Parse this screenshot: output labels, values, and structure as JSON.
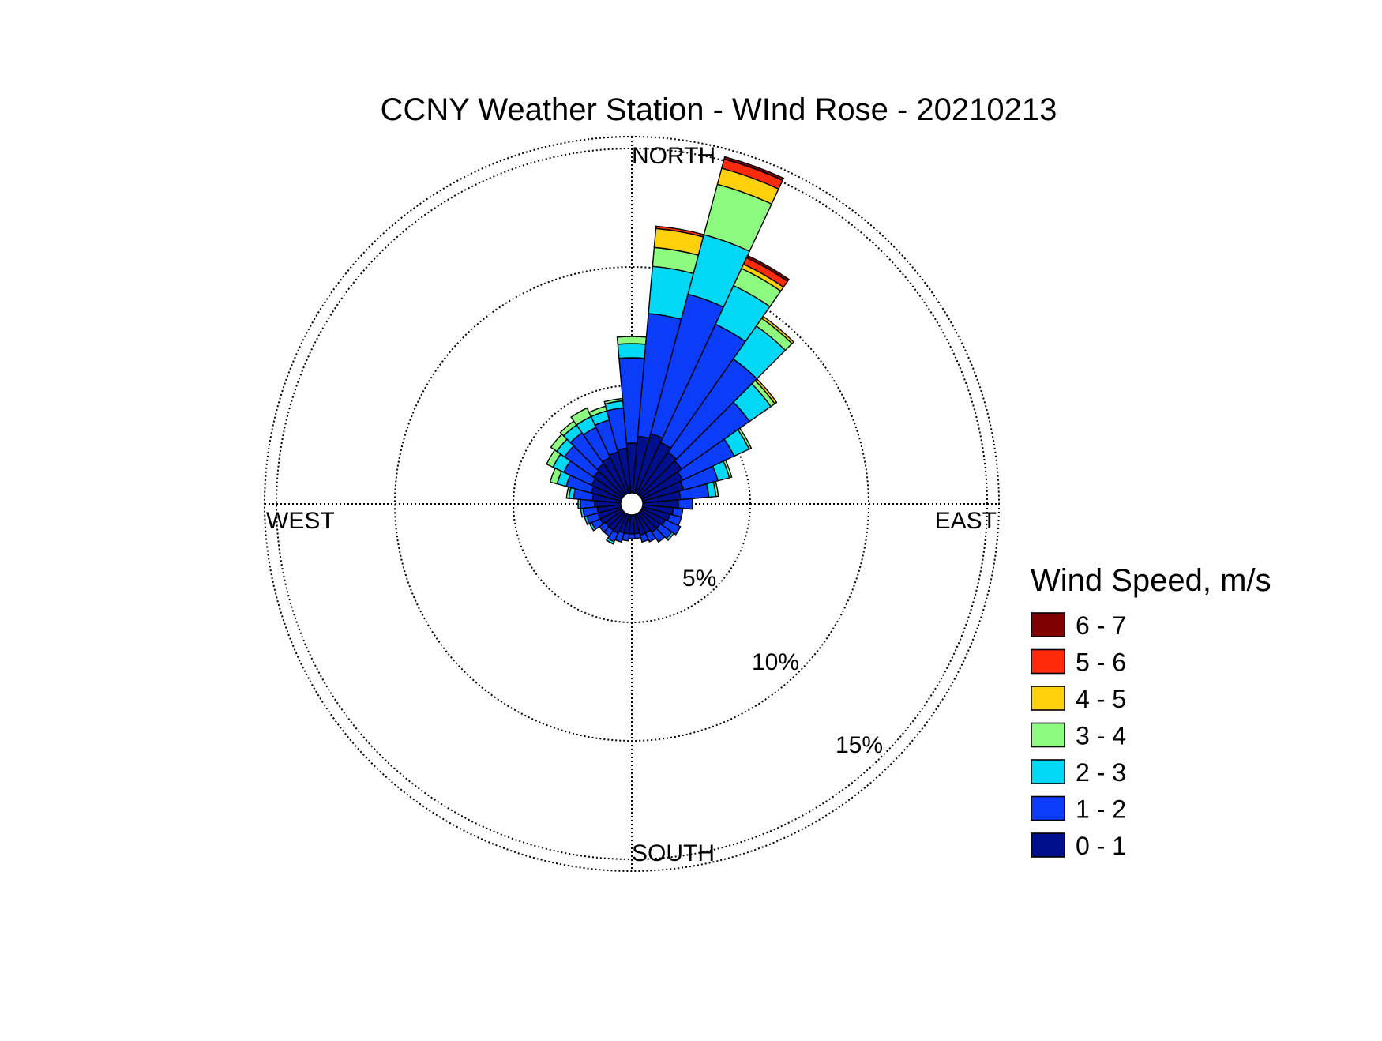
{
  "chart_data": {
    "type": "wind-rose",
    "title": "CCNY Weather Station - WInd Rose - 20210213",
    "directions": {
      "north": "NORTH",
      "east": "EAST",
      "south": "SOUTH",
      "west": "WEST"
    },
    "ring_labels": [
      "5%",
      "10%",
      "15%"
    ],
    "ring_values": [
      5,
      10,
      15
    ],
    "r_max": 15.5,
    "legend_title": "Wind Speed, m/s",
    "bins": [
      {
        "label": "0 - 1",
        "color": "#000f8c"
      },
      {
        "label": "1 - 2",
        "color": "#0a3cfa"
      },
      {
        "label": "2 - 3",
        "color": "#00d8f5"
      },
      {
        "label": "3 - 4",
        "color": "#8dfa80"
      },
      {
        "label": "4 - 5",
        "color": "#fcd00a"
      },
      {
        "label": "5 - 6",
        "color": "#ff2a0a"
      },
      {
        "label": "6 - 7",
        "color": "#7f0000"
      }
    ],
    "sector_width_deg": 10,
    "sectors": [
      {
        "dir": 0,
        "values": [
          2.1,
          3.6,
          0.6,
          0.3,
          0.0,
          0.0,
          0.0
        ]
      },
      {
        "dir": 10,
        "values": [
          2.4,
          5.2,
          2.0,
          0.8,
          0.8,
          0.1,
          0.0
        ]
      },
      {
        "dir": 20,
        "values": [
          2.6,
          6.1,
          2.6,
          2.2,
          0.7,
          0.4,
          0.1
        ]
      },
      {
        "dir": 30,
        "values": [
          2.4,
          5.5,
          1.8,
          0.8,
          0.2,
          0.3,
          0.1
        ]
      },
      {
        "dir": 40,
        "values": [
          2.2,
          4.8,
          1.7,
          0.4,
          0.1,
          0.0,
          0.0
        ]
      },
      {
        "dir": 50,
        "values": [
          2.1,
          3.5,
          1.1,
          0.2,
          0.1,
          0.0,
          0.0
        ]
      },
      {
        "dir": 60,
        "values": [
          1.9,
          2.4,
          0.7,
          0.1,
          0.0,
          0.0,
          0.0
        ]
      },
      {
        "dir": 70,
        "values": [
          1.8,
          1.5,
          0.5,
          0.1,
          0.0,
          0.0,
          0.0
        ]
      },
      {
        "dir": 80,
        "values": [
          1.6,
          1.2,
          0.3,
          0.1,
          0.0,
          0.0,
          0.0
        ]
      },
      {
        "dir": 90,
        "values": [
          1.5,
          0.6,
          0.0,
          0.0,
          0.0,
          0.0,
          0.0
        ]
      },
      {
        "dir": 100,
        "values": [
          1.3,
          0.4,
          0.0,
          0.0,
          0.0,
          0.0,
          0.0
        ]
      },
      {
        "dir": 110,
        "values": [
          1.2,
          0.5,
          0.0,
          0.0,
          0.0,
          0.0,
          0.0
        ]
      },
      {
        "dir": 120,
        "values": [
          1.1,
          0.7,
          0.0,
          0.0,
          0.0,
          0.0,
          0.0
        ]
      },
      {
        "dir": 130,
        "values": [
          1.0,
          0.6,
          0.1,
          0.0,
          0.0,
          0.0,
          0.0
        ]
      },
      {
        "dir": 140,
        "values": [
          1.0,
          0.5,
          0.0,
          0.0,
          0.0,
          0.0,
          0.0
        ]
      },
      {
        "dir": 150,
        "values": [
          0.9,
          0.4,
          0.0,
          0.0,
          0.0,
          0.0,
          0.0
        ]
      },
      {
        "dir": 160,
        "values": [
          0.9,
          0.3,
          0.0,
          0.0,
          0.0,
          0.0,
          0.0
        ]
      },
      {
        "dir": 170,
        "values": [
          0.8,
          0.2,
          0.0,
          0.0,
          0.0,
          0.0,
          0.0
        ]
      },
      {
        "dir": 180,
        "values": [
          0.8,
          0.2,
          0.0,
          0.0,
          0.0,
          0.0,
          0.0
        ]
      },
      {
        "dir": 190,
        "values": [
          0.8,
          0.3,
          0.0,
          0.0,
          0.0,
          0.0,
          0.0
        ]
      },
      {
        "dir": 200,
        "values": [
          0.8,
          0.4,
          0.0,
          0.0,
          0.0,
          0.0,
          0.0
        ]
      },
      {
        "dir": 210,
        "values": [
          0.9,
          0.4,
          0.1,
          0.0,
          0.0,
          0.0,
          0.0
        ]
      },
      {
        "dir": 220,
        "values": [
          0.9,
          0.3,
          0.0,
          0.0,
          0.0,
          0.0,
          0.0
        ]
      },
      {
        "dir": 230,
        "values": [
          0.9,
          0.3,
          0.0,
          0.0,
          0.0,
          0.0,
          0.0
        ]
      },
      {
        "dir": 240,
        "values": [
          1.0,
          0.4,
          0.1,
          0.0,
          0.0,
          0.0,
          0.0
        ]
      },
      {
        "dir": 250,
        "values": [
          1.0,
          0.5,
          0.1,
          0.0,
          0.0,
          0.0,
          0.0
        ]
      },
      {
        "dir": 260,
        "values": [
          1.0,
          0.6,
          0.1,
          0.0,
          0.0,
          0.0,
          0.0
        ]
      },
      {
        "dir": 270,
        "values": [
          1.1,
          0.6,
          0.1,
          0.0,
          0.0,
          0.0,
          0.0
        ]
      },
      {
        "dir": 280,
        "values": [
          1.2,
          0.8,
          0.2,
          0.1,
          0.0,
          0.0,
          0.0
        ]
      },
      {
        "dir": 290,
        "values": [
          1.3,
          1.1,
          0.4,
          0.3,
          0.0,
          0.0,
          0.0
        ]
      },
      {
        "dir": 300,
        "values": [
          1.4,
          1.3,
          0.5,
          0.3,
          0.0,
          0.0,
          0.0
        ]
      },
      {
        "dir": 310,
        "values": [
          1.5,
          1.5,
          0.4,
          0.3,
          0.0,
          0.0,
          0.0
        ]
      },
      {
        "dir": 320,
        "values": [
          1.6,
          1.6,
          0.4,
          0.2,
          0.0,
          0.0,
          0.0
        ]
      },
      {
        "dir": 330,
        "values": [
          1.7,
          1.4,
          0.5,
          0.4,
          0.0,
          0.0,
          0.0
        ]
      },
      {
        "dir": 340,
        "values": [
          1.8,
          1.4,
          0.4,
          0.2,
          0.0,
          0.0,
          0.0
        ]
      },
      {
        "dir": 350,
        "values": [
          1.9,
          1.7,
          0.3,
          0.1,
          0.0,
          0.0,
          0.0
        ]
      }
    ]
  }
}
